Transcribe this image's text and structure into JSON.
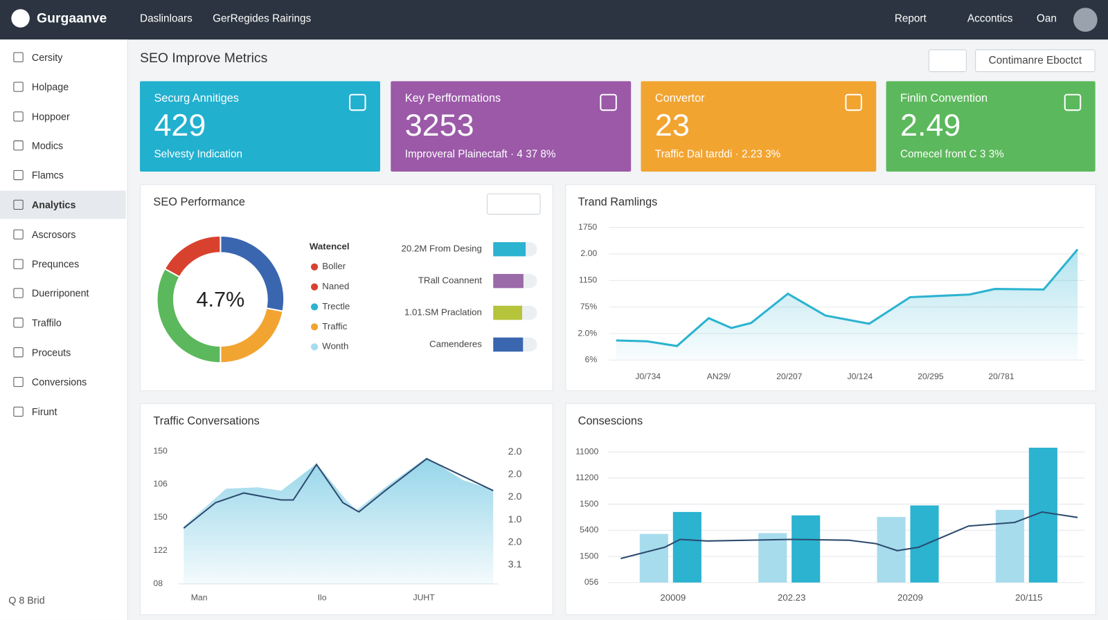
{
  "header": {
    "brand": "Gurgaanve",
    "nav": [
      "Daslinloars",
      "GerRegides Rairings"
    ],
    "actions": [
      "Report",
      "Accontics",
      "Oan"
    ]
  },
  "sidebar": {
    "items": [
      "Cersity",
      "Holpage",
      "Hoppoer",
      "Modics",
      "Flamcs",
      "Analytics",
      "Ascrosors",
      "Prequnces",
      "Duerriponent",
      "Traffilo",
      "Proceuts",
      "Conversions",
      "Firunt"
    ],
    "active": 5,
    "footer": "Q 8 Brid"
  },
  "page": {
    "title": "SEO Improve Metrics",
    "button": "Contimanre Eboctct"
  },
  "cards": [
    {
      "title": "Securg Annitiges",
      "value": "429",
      "sub": "Selvesty Indication",
      "color": "#22b0cf"
    },
    {
      "title": "Key Perfformations",
      "value": "3253",
      "sub": "Improveral Plainectaft · 4 37 8%",
      "color": "#9b59a8"
    },
    {
      "title": "Convertor",
      "value": "23",
      "sub": "Traffic Dal tarddi · 2.23 3%",
      "color": "#f2a431"
    },
    {
      "title": "Finlin Convention",
      "value": "2.49",
      "sub": "Comecel front C 3 3%",
      "color": "#5cb85c"
    }
  ],
  "seo_performance": {
    "title": "SEO Performance",
    "type": "pie",
    "center": "4.7%",
    "donut": [
      {
        "value": 28,
        "color": "#3a66b0"
      },
      {
        "value": 22,
        "color": "#f2a431"
      },
      {
        "value": 33,
        "color": "#5cb85c"
      },
      {
        "value": 17,
        "color": "#d9412f"
      }
    ],
    "legend_title": "Watencel",
    "legend": [
      {
        "name": "Boller",
        "color": "#d9412f"
      },
      {
        "name": "Naned",
        "color": "#d9412f"
      },
      {
        "name": "Trectle",
        "color": "#2bb3d0"
      },
      {
        "name": "Traffic",
        "color": "#f2a431"
      },
      {
        "name": "Wonth",
        "color": "#a7dced"
      }
    ],
    "bars": [
      {
        "label": "20.2M From Desing",
        "value": 74,
        "color": "#2bb3d0"
      },
      {
        "label": "TRall Coannent",
        "value": 69,
        "color": "#9b6aa8"
      },
      {
        "label": "1.01.SM Praclation",
        "value": 66,
        "color": "#b5c43a"
      },
      {
        "label": "Camenderes",
        "value": 68,
        "color": "#3a66b0"
      }
    ],
    "bar_max": 100
  },
  "trend_rankings": {
    "title": "Trand Ramlings",
    "type": "line",
    "color": "#2bb3d0",
    "grid": true,
    "x": [
      0.55,
      0.98,
      1.41,
      1.86,
      2.18,
      2.46,
      2.98,
      3.51,
      4.13,
      4.71,
      5.13,
      5.55,
      5.91,
      6.6,
      7.08
    ],
    "values": [
      0.74,
      0.71,
      0.53,
      1.58,
      1.21,
      1.4,
      2.5,
      1.68,
      1.37,
      2.37,
      2.42,
      2.47,
      2.68,
      2.66,
      4.17
    ],
    "xlim": [
      0.55,
      7.08
    ],
    "ylim": [
      0,
      5
    ],
    "xticks": [
      {
        "value": 1,
        "label": "J0/734"
      },
      {
        "value": 2,
        "label": "AN29/"
      },
      {
        "value": 3,
        "label": "20/207"
      },
      {
        "value": 4,
        "label": "J0/124"
      },
      {
        "value": 5,
        "label": "20/295"
      },
      {
        "value": 6,
        "label": "20/781"
      }
    ],
    "yticks": [
      {
        "value": 0,
        "label": "6%"
      },
      {
        "value": 1,
        "label": "2.0%"
      },
      {
        "value": 2,
        "label": "75%"
      },
      {
        "value": 3,
        "label": "1150"
      },
      {
        "value": 4,
        "label": "2.00"
      },
      {
        "value": 5,
        "label": "1750"
      }
    ]
  },
  "traffic_conversions": {
    "title": "Traffic Conversations",
    "type": "area",
    "series": [
      {
        "type": "area",
        "color": "#8fd3e8",
        "x": [
          0,
          13.7,
          24,
          31.5,
          42.9,
          52.5,
          55.9,
          65.8,
          78.5,
          90.2,
          100
        ],
        "values": [
          1.74,
          2.87,
          2.91,
          2.81,
          3.62,
          2.53,
          2.23,
          2.96,
          3.81,
          3.13,
          2.83
        ]
      },
      {
        "type": "line",
        "color": "#2c4a6e",
        "x": [
          0,
          10.3,
          19.4,
          31.5,
          35.4,
          42.9,
          51.4,
          56.6,
          65.1,
          78.5,
          89,
          100
        ],
        "values": [
          1.68,
          2.45,
          2.74,
          2.53,
          2.53,
          3.6,
          2.45,
          2.17,
          2.81,
          3.77,
          3.3,
          2.81
        ]
      }
    ],
    "xlim": [
      0,
      100
    ],
    "ylim": [
      0,
      4
    ],
    "xticks": [
      {
        "value": 5,
        "label": "Man"
      },
      {
        "value": 44.7,
        "label": "Ilo"
      },
      {
        "value": 77.6,
        "label": "JUHT"
      }
    ],
    "yticks": [
      {
        "value": 0,
        "label": "08"
      },
      {
        "value": 1,
        "label": "122"
      },
      {
        "value": 2,
        "label": "150"
      },
      {
        "value": 3,
        "label": "106"
      },
      {
        "value": 4,
        "label": "150"
      }
    ],
    "y2lim": [
      -0.84,
      5.03
    ],
    "y2ticks": [
      {
        "value": 0,
        "label": "3.1"
      },
      {
        "value": 1,
        "label": "2.0"
      },
      {
        "value": 2,
        "label": "1.0"
      },
      {
        "value": 3,
        "label": "2.0"
      },
      {
        "value": 4,
        "label": "2.0"
      },
      {
        "value": 5,
        "label": "2.0"
      }
    ]
  },
  "consescions": {
    "title": "Consescions",
    "type": "bar",
    "grid": true,
    "categories": [
      "20009",
      "202.23",
      "20209",
      "20/115"
    ],
    "series": [
      {
        "color": "#a7dced",
        "values": [
          1.86,
          1.89,
          2.51,
          2.78
        ]
      },
      {
        "color": "#2bb3d0",
        "values": [
          2.7,
          2.57,
          2.95,
          5.16
        ]
      }
    ],
    "line": {
      "color": "#2c4a6e",
      "x": [
        -0.44,
        -0.07,
        0.06,
        0.29,
        0.64,
        1.0,
        1.48,
        1.71,
        1.89,
        2.07,
        2.49,
        2.88,
        3.11,
        3.41
      ],
      "values": [
        0.92,
        1.35,
        1.65,
        1.59,
        1.62,
        1.65,
        1.62,
        1.49,
        1.22,
        1.35,
        2.16,
        2.3,
        2.7,
        2.49
      ]
    },
    "xlim": [
      -0.55,
      3.47
    ],
    "ylim": [
      0,
      5.2
    ],
    "yticks": [
      {
        "value": 0,
        "label": "056"
      },
      {
        "value": 1,
        "label": "1500"
      },
      {
        "value": 2,
        "label": "5400"
      },
      {
        "value": 3,
        "label": "1500"
      },
      {
        "value": 4,
        "label": "11200"
      },
      {
        "value": 5,
        "label": "11000"
      }
    ]
  }
}
